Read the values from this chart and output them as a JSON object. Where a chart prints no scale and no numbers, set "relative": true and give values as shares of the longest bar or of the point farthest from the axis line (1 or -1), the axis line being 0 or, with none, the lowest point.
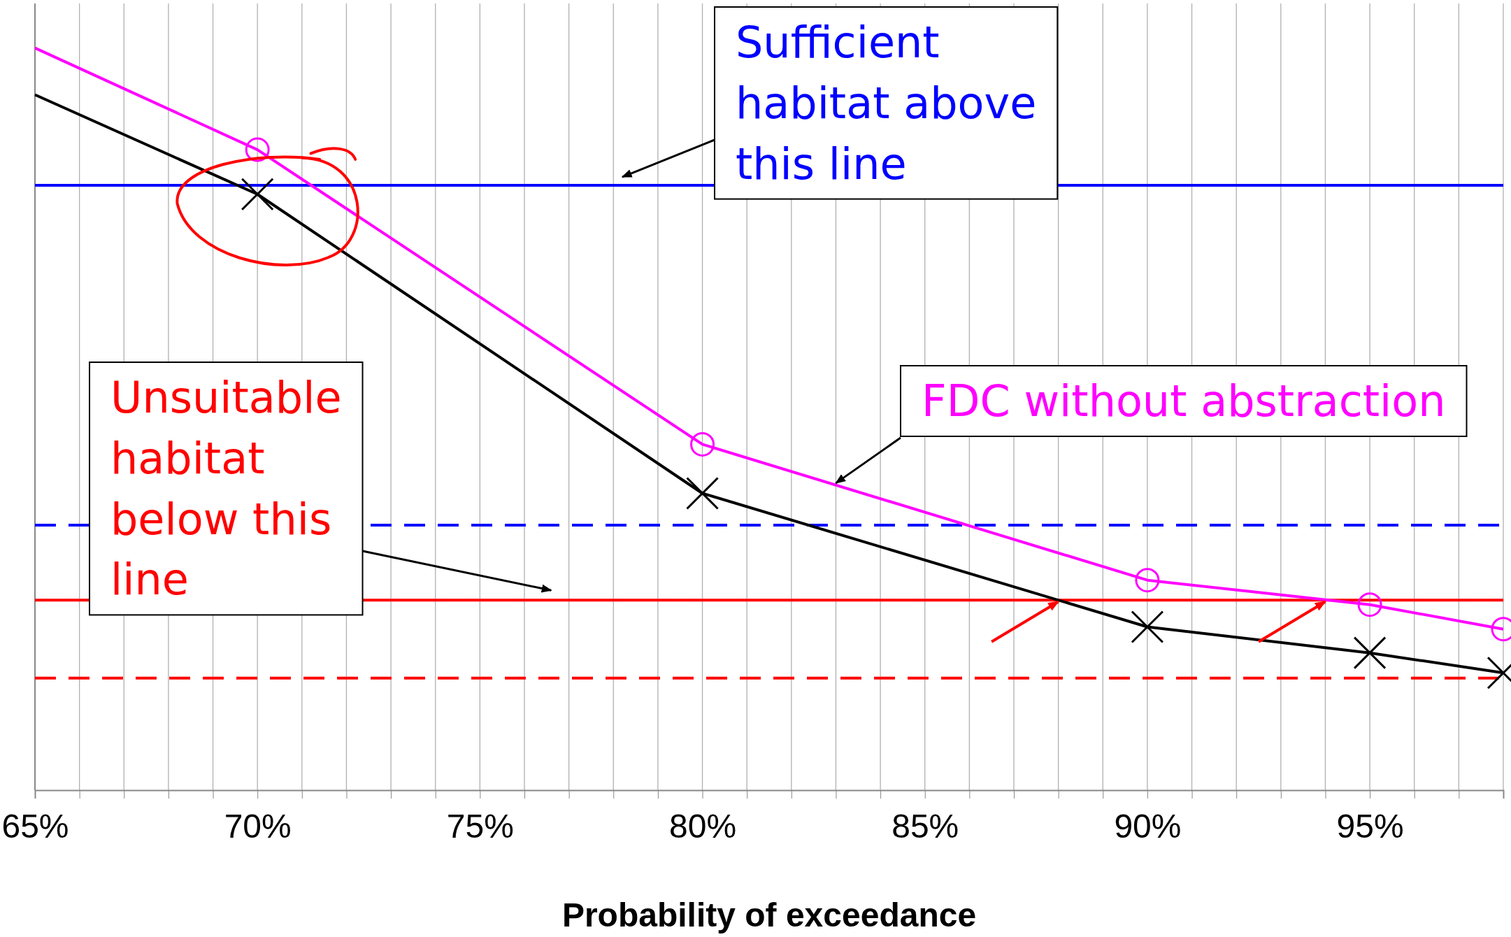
{
  "chart_data": {
    "type": "line",
    "relative": true,
    "xlabel": "Probability of exceedance",
    "x": [
      65,
      70,
      80,
      90,
      95,
      98
    ],
    "xlim": [
      65,
      98
    ],
    "xticks": [
      {
        "value": 65,
        "label": "65%"
      },
      {
        "value": 66,
        "label": null
      },
      {
        "value": 67,
        "label": null
      },
      {
        "value": 68,
        "label": null
      },
      {
        "value": 69,
        "label": null
      },
      {
        "value": 70,
        "label": "70%"
      },
      {
        "value": 71,
        "label": null
      },
      {
        "value": 72,
        "label": null
      },
      {
        "value": 73,
        "label": null
      },
      {
        "value": 74,
        "label": null
      },
      {
        "value": 75,
        "label": "75%"
      },
      {
        "value": 76,
        "label": null
      },
      {
        "value": 77,
        "label": null
      },
      {
        "value": 78,
        "label": null
      },
      {
        "value": 79,
        "label": null
      },
      {
        "value": 80,
        "label": "80%"
      },
      {
        "value": 81,
        "label": null
      },
      {
        "value": 82,
        "label": null
      },
      {
        "value": 83,
        "label": null
      },
      {
        "value": 84,
        "label": null
      },
      {
        "value": 85,
        "label": "85%"
      },
      {
        "value": 86,
        "label": null
      },
      {
        "value": 87,
        "label": null
      },
      {
        "value": 88,
        "label": null
      },
      {
        "value": 89,
        "label": null
      },
      {
        "value": 90,
        "label": "90%"
      },
      {
        "value": 91,
        "label": null
      },
      {
        "value": 92,
        "label": null
      },
      {
        "value": 93,
        "label": null
      },
      {
        "value": 94,
        "label": null
      },
      {
        "value": 95,
        "label": "95%"
      },
      {
        "value": 96,
        "label": null
      },
      {
        "value": 97,
        "label": null
      },
      {
        "value": 98,
        "label": null
      }
    ],
    "grid": "x",
    "series": [
      {
        "name": "FDC without abstraction",
        "color": "#ff00ff",
        "marker": "circle",
        "values": [
          1.0,
          0.863,
          0.466,
          0.283,
          0.25,
          0.217
        ]
      },
      {
        "color": "#000000",
        "marker": "cross",
        "values": [
          0.937,
          0.803,
          0.4,
          0.22,
          0.185,
          0.158
        ]
      }
    ],
    "ref_lines": [
      {
        "axis": "y",
        "value": 0.815,
        "label": "Sufficient habitat above this line",
        "color": "#0000ff",
        "line_style": "solid"
      },
      {
        "axis": "y",
        "value": 0.357,
        "color": "#0000ff",
        "line_style": "dashed"
      },
      {
        "axis": "y",
        "value": 0.256,
        "label": "Unsuitable habitat below this line",
        "color": "#ff0000",
        "line_style": "solid"
      },
      {
        "axis": "y",
        "value": 0.151,
        "color": "#ff0000",
        "line_style": "dashed"
      }
    ]
  }
}
